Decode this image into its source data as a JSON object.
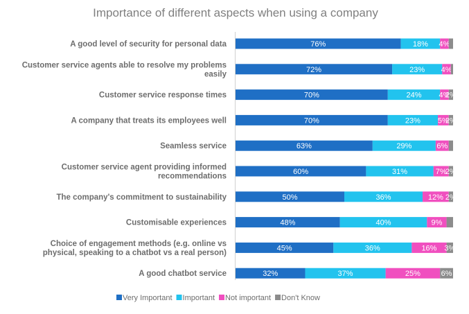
{
  "chart_data": {
    "type": "bar",
    "orientation": "horizontal",
    "stacked": true,
    "title": "Importance of different aspects when using a company",
    "xlim": [
      0,
      100
    ],
    "categories": [
      [
        "A good level of security for personal data"
      ],
      [
        "Customer service agents able to resolve my problems",
        "easily"
      ],
      [
        "Customer service response times"
      ],
      [
        "A company that treats its employees well"
      ],
      [
        "Seamless service"
      ],
      [
        "Customer service agent providing informed",
        "recommendations"
      ],
      [
        "The company's commitment to sustainability"
      ],
      [
        "Customisable experiences"
      ],
      [
        "Choice of engagement methods (e.g. online vs",
        "physical, speaking to a chatbot vs a real person)"
      ],
      [
        "A good chatbot service"
      ]
    ],
    "series": [
      {
        "name": "Very Important",
        "color": "#1f6fc5",
        "label_color": "#ffffff",
        "values": [
          76,
          72,
          70,
          70,
          63,
          60,
          50,
          48,
          45,
          32
        ]
      },
      {
        "name": "Important",
        "color": "#22c3ee",
        "label_color": "#ffffff",
        "values": [
          18,
          23,
          24,
          23,
          29,
          31,
          36,
          40,
          36,
          37
        ]
      },
      {
        "name": "Not important",
        "color": "#f04fbf",
        "label_color": "#ffffff",
        "values": [
          4,
          4,
          4,
          5,
          6,
          7,
          12,
          9,
          16,
          25
        ]
      },
      {
        "name": "Don't Know",
        "color": "#8c8c8c",
        "label_color": "#ffffff",
        "values": [
          2,
          1,
          2,
          2,
          2,
          2,
          2,
          3,
          3,
          6
        ]
      }
    ],
    "data_labels": [
      [
        "76%",
        "18%",
        "4%",
        ""
      ],
      [
        "72%",
        "23%",
        "4%",
        ""
      ],
      [
        "70%",
        "24%",
        "4%",
        "2%"
      ],
      [
        "70%",
        "23%",
        "5%",
        "2%"
      ],
      [
        "63%",
        "29%",
        "6%",
        ""
      ],
      [
        "60%",
        "31%",
        "7%",
        "2%"
      ],
      [
        "50%",
        "36%",
        "12%",
        "2%"
      ],
      [
        "48%",
        "40%",
        "9%",
        ""
      ],
      [
        "45%",
        "36%",
        "16%",
        "3%"
      ],
      [
        "32%",
        "37%",
        "25%",
        "6%"
      ]
    ],
    "legend": {
      "position": "bottom",
      "labels": [
        "Very Important",
        "Important",
        "Not important",
        "Don't Know"
      ]
    },
    "grid": false
  }
}
